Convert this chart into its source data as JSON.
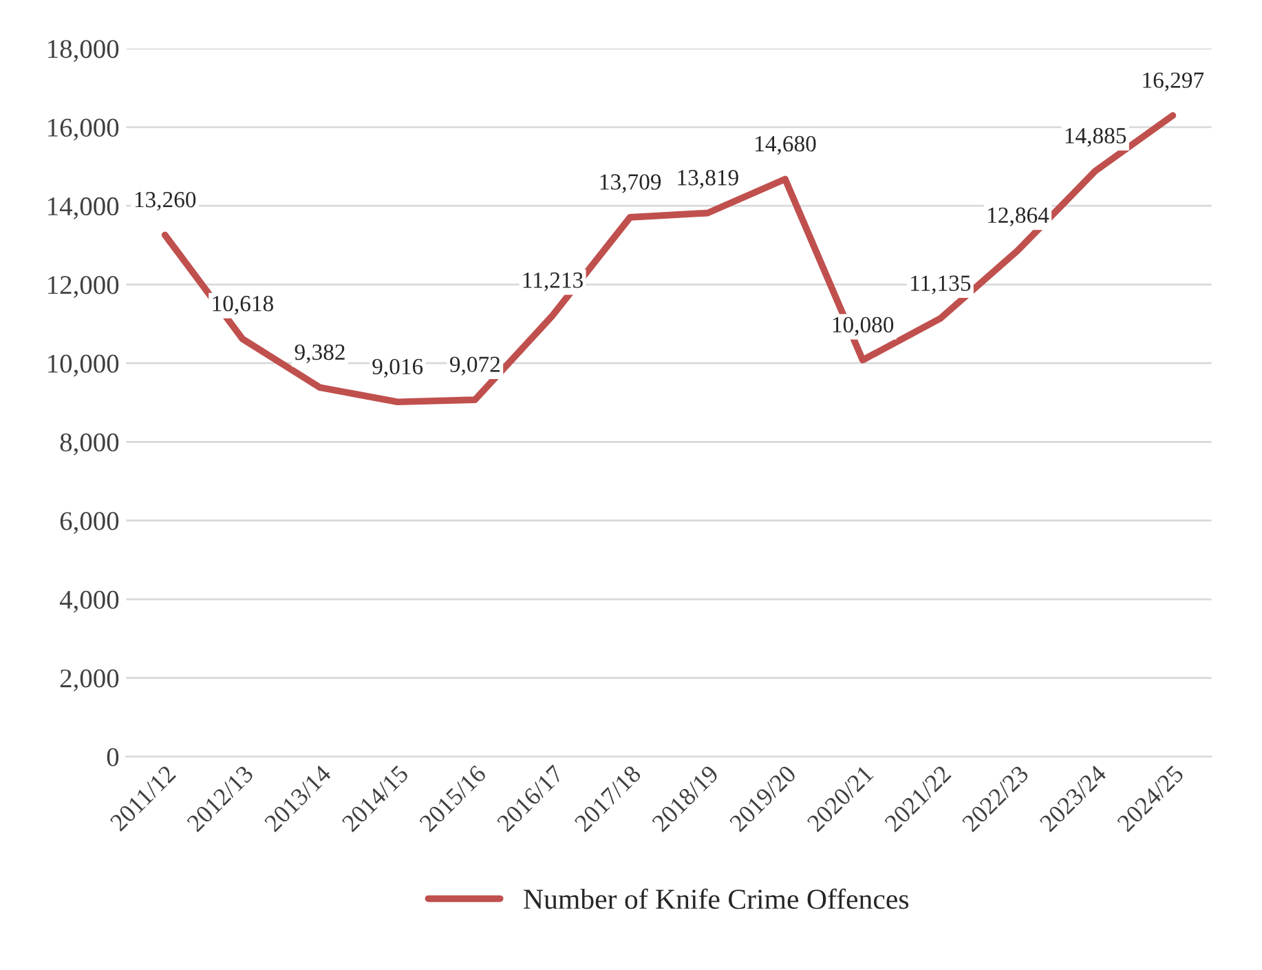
{
  "chart_data": {
    "type": "line",
    "categories": [
      "2011/12",
      "2012/13",
      "2013/14",
      "2014/15",
      "2015/16",
      "2016/17",
      "2017/18",
      "2018/19",
      "2019/20",
      "2020/21",
      "2021/22",
      "2022/23",
      "2023/24",
      "2024/25"
    ],
    "series": [
      {
        "name": "Number of Knife Crime Offences",
        "color": "#c0504d",
        "values": [
          13260,
          10618,
          9382,
          9016,
          9072,
          11213,
          13709,
          13819,
          14680,
          10080,
          11135,
          12864,
          14885,
          16297
        ],
        "value_labels": [
          "13,260",
          "10,618",
          "9,382",
          "9,016",
          "9,072",
          "11,213",
          "13,709",
          "13,819",
          "14,680",
          "10,080",
          "11,135",
          "12,864",
          "14,885",
          "16,297"
        ]
      }
    ],
    "ylim": [
      0,
      18000
    ],
    "yticks": [
      {
        "value": 0,
        "label": "0"
      },
      {
        "value": 2000,
        "label": "2,000"
      },
      {
        "value": 4000,
        "label": "4,000"
      },
      {
        "value": 6000,
        "label": "6,000"
      },
      {
        "value": 8000,
        "label": "8,000"
      },
      {
        "value": 10000,
        "label": "10,000"
      },
      {
        "value": 12000,
        "label": "12,000"
      },
      {
        "value": 14000,
        "label": "14,000"
      },
      {
        "value": 16000,
        "label": "16,000"
      },
      {
        "value": 18000,
        "label": "18,000"
      }
    ],
    "grid": "y",
    "legend": "bottom",
    "marker": "none",
    "line_style": "solid"
  }
}
